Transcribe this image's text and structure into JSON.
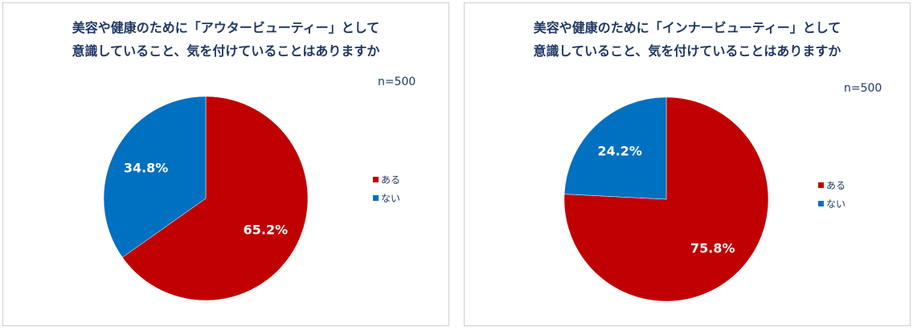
{
  "colors": {
    "red": "#c00000",
    "blue": "#0070c0",
    "title": "#1f3864"
  },
  "chart_data": [
    {
      "type": "pie",
      "title_line1": "美容や健康のために「アウタービューティー」として",
      "title_line2": "意識していること、気を付けていることはありますか",
      "sample": "n=500",
      "slices": [
        {
          "label": "ある",
          "value": 65.2,
          "display": "65.2%",
          "color": "#c00000"
        },
        {
          "label": "ない",
          "value": 34.8,
          "display": "34.8%",
          "color": "#0070c0"
        }
      ],
      "legend_position": "right"
    },
    {
      "type": "pie",
      "title_line1": "美容や健康のために「インナービューティー」として",
      "title_line2": "意識していること、気を付けていることはありますか",
      "sample": "n=500",
      "slices": [
        {
          "label": "ある",
          "value": 75.8,
          "display": "75.8%",
          "color": "#c00000"
        },
        {
          "label": "ない",
          "value": 24.2,
          "display": "24.2%",
          "color": "#0070c0"
        }
      ],
      "legend_position": "right"
    }
  ]
}
